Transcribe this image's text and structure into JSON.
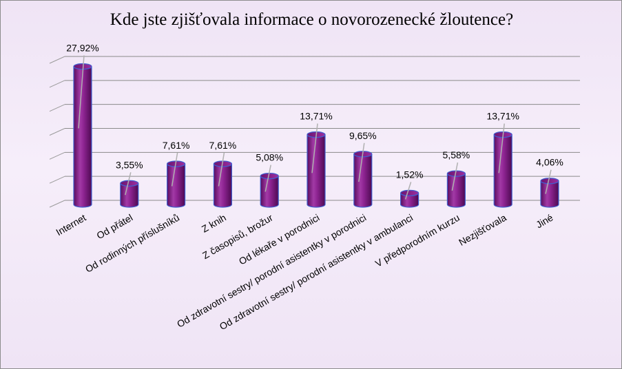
{
  "chart_data": {
    "type": "bar",
    "title": "Kde jste zjišťovala informace o novorozenecké žloutence?",
    "categories": [
      "Internet",
      "Od přátel",
      "Od rodinných příslušníků",
      "Z knih",
      "Z časopisů, brožur",
      "Od lékaře v porodnici",
      "Od zdravotní sestry/ porodní asistentky v porodnici",
      "Od zdravotní sestry/ porodní asistentky v ambulanci",
      "V předporodním kurzu",
      "Nezjišťovala",
      "Jiné"
    ],
    "values": [
      27.92,
      3.55,
      7.61,
      7.61,
      5.08,
      13.71,
      9.65,
      1.52,
      5.58,
      13.71,
      4.06
    ],
    "data_labels": [
      "27,92%",
      "3,55%",
      "7,61%",
      "7,61%",
      "5,08%",
      "13,71%",
      "9,65%",
      "1,52%",
      "5,58%",
      "13,71%",
      "4,06%"
    ],
    "ylim": [
      0,
      30
    ],
    "grid": true,
    "y_tick_labels_shown": false,
    "legend": "none",
    "bar_color": "#8b1f8e",
    "bar_style": "cylinder"
  }
}
